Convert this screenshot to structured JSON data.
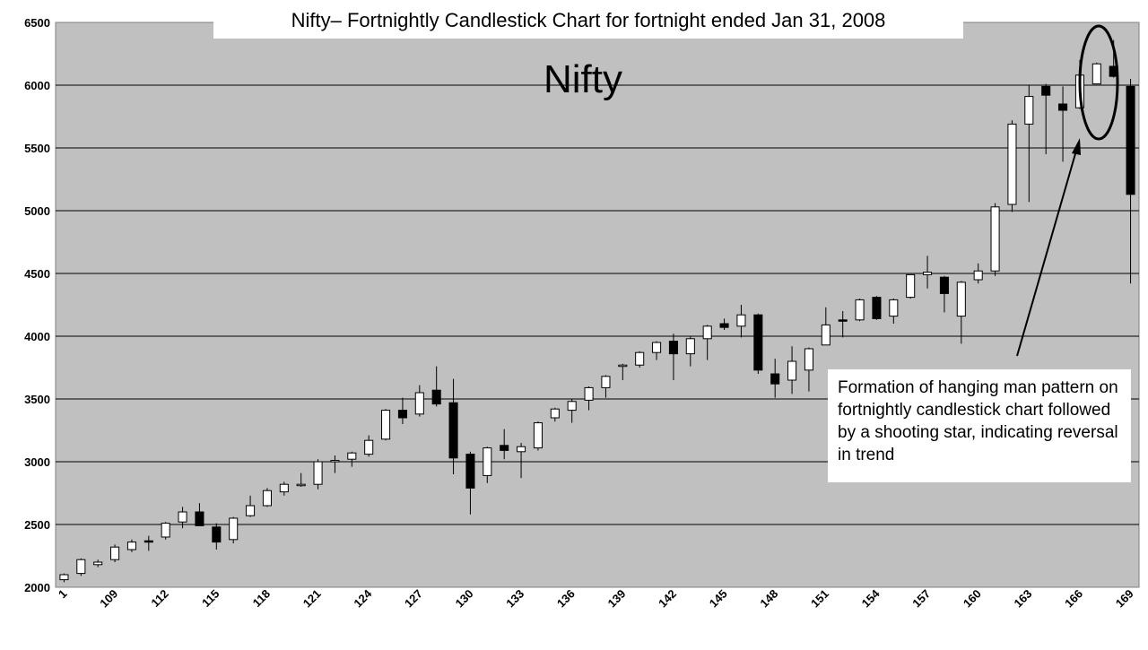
{
  "chart_data": {
    "type": "candlestick",
    "title": "Nifty– Fortnightly Candlestick Chart for fortnight ended Jan 31, 2008",
    "series_label": "Nifty",
    "ylim": [
      2000,
      6500
    ],
    "yticks": [
      2000,
      2500,
      3000,
      3500,
      4000,
      4500,
      5000,
      5500,
      6000,
      6500
    ],
    "xtick_labels": [
      "1",
      "109",
      "112",
      "115",
      "118",
      "121",
      "124",
      "127",
      "130",
      "133",
      "136",
      "139",
      "142",
      "145",
      "148",
      "151",
      "154",
      "157",
      "160",
      "163",
      "166",
      "169"
    ],
    "grid": "horizontal",
    "annotation": "Formation of hanging man pattern on fortnightly candlestick chart followed by a shooting star, indicating reversal in trend",
    "colors": {
      "plot_bg": "#c0c0c0",
      "up": "#ffffff",
      "down": "#000000"
    },
    "candles": [
      {
        "o": 2060,
        "h": 2110,
        "l": 2040,
        "c": 2100
      },
      {
        "o": 2110,
        "h": 2230,
        "l": 2090,
        "c": 2220
      },
      {
        "o": 2180,
        "h": 2220,
        "l": 2160,
        "c": 2200
      },
      {
        "o": 2220,
        "h": 2340,
        "l": 2200,
        "c": 2320
      },
      {
        "o": 2300,
        "h": 2380,
        "l": 2280,
        "c": 2360
      },
      {
        "o": 2370,
        "h": 2410,
        "l": 2290,
        "c": 2360
      },
      {
        "o": 2400,
        "h": 2520,
        "l": 2380,
        "c": 2510
      },
      {
        "o": 2520,
        "h": 2640,
        "l": 2470,
        "c": 2600
      },
      {
        "o": 2600,
        "h": 2670,
        "l": 2490,
        "c": 2490
      },
      {
        "o": 2480,
        "h": 2510,
        "l": 2300,
        "c": 2360
      },
      {
        "o": 2380,
        "h": 2560,
        "l": 2350,
        "c": 2550
      },
      {
        "o": 2570,
        "h": 2730,
        "l": 2560,
        "c": 2650
      },
      {
        "o": 2650,
        "h": 2790,
        "l": 2640,
        "c": 2770
      },
      {
        "o": 2760,
        "h": 2840,
        "l": 2730,
        "c": 2820
      },
      {
        "o": 2810,
        "h": 2910,
        "l": 2800,
        "c": 2820
      },
      {
        "o": 2820,
        "h": 3020,
        "l": 2780,
        "c": 3000
      },
      {
        "o": 3000,
        "h": 3050,
        "l": 2910,
        "c": 3010
      },
      {
        "o": 3020,
        "h": 3080,
        "l": 2960,
        "c": 3070
      },
      {
        "o": 3060,
        "h": 3210,
        "l": 3040,
        "c": 3170
      },
      {
        "o": 3180,
        "h": 3420,
        "l": 3170,
        "c": 3410
      },
      {
        "o": 3410,
        "h": 3510,
        "l": 3300,
        "c": 3350
      },
      {
        "o": 3380,
        "h": 3610,
        "l": 3360,
        "c": 3550
      },
      {
        "o": 3570,
        "h": 3760,
        "l": 3440,
        "c": 3460
      },
      {
        "o": 3470,
        "h": 3660,
        "l": 2900,
        "c": 3030
      },
      {
        "o": 3060,
        "h": 3080,
        "l": 2580,
        "c": 2790
      },
      {
        "o": 2890,
        "h": 3120,
        "l": 2830,
        "c": 3110
      },
      {
        "o": 3130,
        "h": 3260,
        "l": 3020,
        "c": 3090
      },
      {
        "o": 3080,
        "h": 3150,
        "l": 2870,
        "c": 3120
      },
      {
        "o": 3110,
        "h": 3320,
        "l": 3090,
        "c": 3310
      },
      {
        "o": 3350,
        "h": 3430,
        "l": 3320,
        "c": 3420
      },
      {
        "o": 3410,
        "h": 3500,
        "l": 3310,
        "c": 3480
      },
      {
        "o": 3490,
        "h": 3600,
        "l": 3410,
        "c": 3590
      },
      {
        "o": 3590,
        "h": 3690,
        "l": 3510,
        "c": 3680
      },
      {
        "o": 3760,
        "h": 3780,
        "l": 3650,
        "c": 3770
      },
      {
        "o": 3770,
        "h": 3880,
        "l": 3750,
        "c": 3870
      },
      {
        "o": 3870,
        "h": 3960,
        "l": 3810,
        "c": 3950
      },
      {
        "o": 3960,
        "h": 4020,
        "l": 3650,
        "c": 3860
      },
      {
        "o": 3860,
        "h": 4000,
        "l": 3760,
        "c": 3980
      },
      {
        "o": 3980,
        "h": 4090,
        "l": 3810,
        "c": 4080
      },
      {
        "o": 4100,
        "h": 4140,
        "l": 4050,
        "c": 4070
      },
      {
        "o": 4080,
        "h": 4250,
        "l": 3990,
        "c": 4170
      },
      {
        "o": 4170,
        "h": 4180,
        "l": 3700,
        "c": 3730
      },
      {
        "o": 3700,
        "h": 3820,
        "l": 3510,
        "c": 3620
      },
      {
        "o": 3650,
        "h": 3920,
        "l": 3540,
        "c": 3800
      },
      {
        "o": 3730,
        "h": 3910,
        "l": 3560,
        "c": 3900
      },
      {
        "o": 3930,
        "h": 4230,
        "l": 3930,
        "c": 4090
      },
      {
        "o": 4130,
        "h": 4200,
        "l": 3990,
        "c": 4120
      },
      {
        "o": 4130,
        "h": 4300,
        "l": 4120,
        "c": 4290
      },
      {
        "o": 4310,
        "h": 4320,
        "l": 4130,
        "c": 4140
      },
      {
        "o": 4160,
        "h": 4300,
        "l": 4100,
        "c": 4290
      },
      {
        "o": 4310,
        "h": 4490,
        "l": 4300,
        "c": 4490
      },
      {
        "o": 4490,
        "h": 4640,
        "l": 4380,
        "c": 4510
      },
      {
        "o": 4470,
        "h": 4480,
        "l": 4190,
        "c": 4340
      },
      {
        "o": 4160,
        "h": 4440,
        "l": 3940,
        "c": 4430
      },
      {
        "o": 4450,
        "h": 4580,
        "l": 4420,
        "c": 4520
      },
      {
        "o": 4520,
        "h": 5060,
        "l": 4480,
        "c": 5030
      },
      {
        "o": 5050,
        "h": 5720,
        "l": 4990,
        "c": 5690
      },
      {
        "o": 5690,
        "h": 6000,
        "l": 5070,
        "c": 5910
      },
      {
        "o": 5990,
        "h": 6010,
        "l": 5450,
        "c": 5920
      },
      {
        "o": 5850,
        "h": 5990,
        "l": 5390,
        "c": 5800
      },
      {
        "o": 5820,
        "h": 6200,
        "l": 5810,
        "c": 6080
      },
      {
        "o": 6010,
        "h": 6180,
        "l": 6010,
        "c": 6170
      },
      {
        "o": 6150,
        "h": 6360,
        "l": 6060,
        "c": 6070
      },
      {
        "o": 5990,
        "h": 6050,
        "l": 4420,
        "c": 5130
      }
    ]
  }
}
